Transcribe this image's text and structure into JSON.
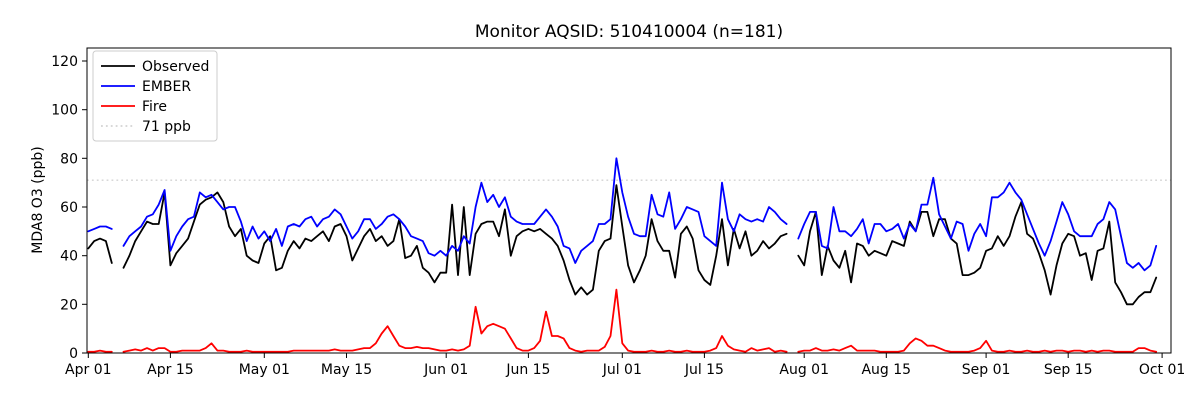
{
  "figure": {
    "title": "Monitor AQSID: 510410004 (n=181)",
    "background": "#ffffff"
  },
  "legend": {
    "entries": [
      {
        "label": "Observed",
        "color": "#000000",
        "dash": "solid"
      },
      {
        "label": "EMBER",
        "color": "#0000ff",
        "dash": "solid"
      },
      {
        "label": "Fire",
        "color": "#ff0000",
        "dash": "solid"
      },
      {
        "label": "71 ppb",
        "color": "#d3d3d3",
        "dash": "dotted"
      }
    ]
  },
  "chart_data": {
    "type": "line",
    "title": "Monitor AQSID: 510410004 (n=181)",
    "xlabel": "",
    "ylabel": "MDA8 O3 (ppb)",
    "ylim": [
      0,
      125
    ],
    "yticks": [
      0,
      20,
      40,
      60,
      80,
      100,
      120
    ],
    "x_unit": "day index from Apr 01",
    "n_days": 183,
    "xtick_days": [
      0,
      14,
      30,
      44,
      61,
      75,
      91,
      105,
      122,
      136,
      153,
      167,
      183
    ],
    "xtick_labels": [
      "Apr 01",
      "Apr 15",
      "May 01",
      "May 15",
      "Jun 01",
      "Jun 15",
      "Jul 01",
      "Jul 15",
      "Aug 01",
      "Aug 15",
      "Sep 01",
      "Sep 15",
      "Oct 01"
    ],
    "grid": false,
    "legend_position": "upper-left",
    "missing_days": [
      "Apr 06",
      "Jul 30"
    ],
    "threshold": {
      "value": 71,
      "label": "71 ppb",
      "color": "#d3d3d3",
      "style": "dotted"
    },
    "series": [
      {
        "name": "Observed",
        "color": "#000000",
        "values": [
          43,
          46,
          47,
          46,
          37,
          null,
          35,
          40,
          46,
          50,
          54,
          53,
          53,
          66,
          36,
          41,
          44,
          47,
          54,
          61,
          63,
          64,
          66,
          62,
          52,
          48,
          51,
          40,
          38,
          37,
          45,
          48,
          34,
          35,
          42,
          46,
          43,
          47,
          46,
          48,
          50,
          46,
          52,
          53,
          48,
          38,
          43,
          48,
          51,
          46,
          48,
          44,
          46,
          55,
          39,
          40,
          44,
          35,
          33,
          29,
          33,
          33,
          61,
          32,
          60,
          32,
          49,
          53,
          54,
          54,
          48,
          59,
          40,
          48,
          50,
          51,
          50,
          51,
          49,
          47,
          44,
          38,
          30,
          24,
          27,
          24,
          26,
          42,
          46,
          47,
          69,
          52,
          36,
          29,
          34,
          40,
          55,
          46,
          42,
          42,
          31,
          49,
          52,
          47,
          34,
          30,
          28,
          40,
          55,
          36,
          51,
          43,
          50,
          40,
          42,
          46,
          43,
          45,
          48,
          49,
          null,
          40,
          36,
          50,
          58,
          32,
          44,
          38,
          35,
          42,
          29,
          45,
          44,
          40,
          42,
          41,
          40,
          46,
          45,
          44,
          54,
          50,
          58,
          58,
          48,
          55,
          55,
          47,
          45,
          32,
          32,
          33,
          35,
          42,
          43,
          48,
          44,
          48,
          56,
          62,
          49,
          47,
          41,
          34,
          24,
          36,
          45,
          49,
          48,
          40,
          41,
          30,
          42,
          43,
          54,
          29,
          25,
          20,
          20,
          23,
          25,
          25,
          31
        ]
      },
      {
        "name": "EMBER",
        "color": "#0000ff",
        "values": [
          50,
          51,
          52,
          52,
          51,
          null,
          44,
          48,
          50,
          52,
          56,
          57,
          61,
          67,
          42,
          48,
          52,
          55,
          56,
          66,
          64,
          65,
          62,
          59,
          60,
          60,
          54,
          46,
          52,
          47,
          50,
          46,
          51,
          44,
          52,
          53,
          52,
          55,
          56,
          52,
          55,
          56,
          59,
          57,
          52,
          47,
          50,
          55,
          55,
          51,
          53,
          56,
          57,
          55,
          52,
          48,
          47,
          46,
          41,
          40,
          42,
          40,
          44,
          42,
          48,
          45,
          60,
          70,
          62,
          65,
          60,
          64,
          56,
          54,
          53,
          53,
          53,
          56,
          59,
          56,
          52,
          44,
          43,
          37,
          42,
          44,
          46,
          53,
          53,
          55,
          80,
          66,
          56,
          49,
          48,
          48,
          65,
          57,
          56,
          66,
          51,
          55,
          60,
          59,
          58,
          48,
          46,
          44,
          70,
          55,
          50,
          57,
          55,
          54,
          55,
          54,
          60,
          58,
          55,
          53,
          null,
          47,
          53,
          58,
          58,
          44,
          43,
          60,
          50,
          50,
          48,
          51,
          55,
          45,
          53,
          53,
          50,
          51,
          53,
          47,
          53,
          50,
          61,
          61,
          72,
          57,
          52,
          47,
          54,
          53,
          42,
          49,
          53,
          48,
          64,
          64,
          66,
          70,
          66,
          63,
          57,
          51,
          45,
          40,
          46,
          54,
          62,
          57,
          50,
          48,
          48,
          48,
          53,
          55,
          62,
          59,
          48,
          37,
          35,
          37,
          34,
          36,
          44
        ]
      },
      {
        "name": "Fire",
        "color": "#ff0000",
        "values": [
          0.5,
          0.5,
          1,
          0.5,
          0.5,
          null,
          0.5,
          1,
          1.5,
          1,
          2,
          1,
          2,
          2,
          0.5,
          0.5,
          1,
          1,
          1,
          1,
          2,
          4,
          1,
          1,
          0.5,
          0.5,
          0.5,
          1,
          0.5,
          0.5,
          0.5,
          0.5,
          0.5,
          0.5,
          0.5,
          1,
          1,
          1,
          1,
          1,
          1,
          1,
          1.5,
          1,
          1,
          1,
          1.5,
          2,
          2,
          4,
          8,
          11,
          7,
          3,
          2,
          2,
          2.5,
          2,
          2,
          1.5,
          1,
          1,
          1.5,
          1,
          1.5,
          3,
          19,
          8,
          11,
          12,
          11,
          10,
          6,
          2,
          1,
          1,
          2,
          5,
          17,
          7,
          7,
          6,
          2,
          1,
          0.5,
          1,
          1,
          1,
          2.5,
          7,
          26,
          4,
          1,
          0.5,
          0.5,
          0.5,
          1,
          0.5,
          0.5,
          1,
          0.5,
          0.5,
          1,
          0.5,
          0.5,
          0.5,
          1,
          2,
          7,
          3,
          1.5,
          1,
          0.5,
          2,
          1,
          1.5,
          2,
          0.5,
          1,
          0.5,
          null,
          0.5,
          1,
          1,
          2,
          1,
          1,
          1.5,
          1,
          2,
          3,
          1,
          1,
          1,
          1,
          0.5,
          0.5,
          0.5,
          0.5,
          1,
          4,
          6,
          5,
          3,
          3,
          2,
          1,
          0.5,
          0.5,
          0.5,
          0.5,
          1,
          2,
          5,
          1,
          0.5,
          0.5,
          1,
          0.5,
          0.5,
          1,
          0.5,
          0.5,
          1,
          0.5,
          1,
          1,
          0.5,
          1,
          1,
          0.5,
          1,
          0.5,
          1,
          1,
          0.5,
          0.5,
          0.5,
          0.5,
          2,
          2,
          1,
          0.5
        ]
      }
    ]
  }
}
